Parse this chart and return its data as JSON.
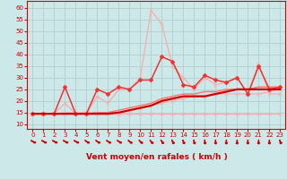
{
  "xlabel": "Vent moyen/en rafales ( km/h )",
  "background_color": "#cce8e8",
  "grid_color": "#aacccc",
  "x_ticks": [
    0,
    1,
    2,
    3,
    4,
    5,
    6,
    7,
    8,
    9,
    10,
    11,
    12,
    13,
    14,
    15,
    16,
    17,
    18,
    19,
    20,
    21,
    22,
    23
  ],
  "ylim": [
    8,
    63
  ],
  "yticks": [
    10,
    15,
    20,
    25,
    30,
    35,
    40,
    45,
    50,
    55,
    60
  ],
  "line_pink_flat": {
    "x": [
      0,
      1,
      2,
      3,
      4,
      5,
      6,
      7,
      8,
      9,
      10,
      11,
      12,
      13,
      14,
      15,
      16,
      17,
      18,
      19,
      20,
      21,
      22,
      23
    ],
    "y": [
      14.5,
      14.5,
      14.5,
      14.5,
      14.5,
      14.5,
      14.5,
      14.5,
      14.5,
      14.5,
      14.5,
      14.5,
      14.5,
      14.5,
      14.5,
      14.5,
      14.5,
      14.5,
      14.5,
      14.5,
      14.5,
      14.5,
      14.5,
      14.5
    ],
    "color": "#ffaaaa",
    "lw": 0.9,
    "marker": "x",
    "ms": 2.5,
    "zorder": 2
  },
  "line_pink_gust": {
    "x": [
      0,
      1,
      2,
      3,
      4,
      5,
      6,
      7,
      8,
      9,
      10,
      11,
      12,
      13,
      14,
      15,
      16,
      17,
      18,
      19,
      20,
      21,
      22,
      23
    ],
    "y": [
      14.5,
      14.5,
      14.5,
      19,
      14.5,
      14.5,
      22,
      19,
      25,
      25,
      30,
      59,
      53,
      35,
      30,
      25,
      30,
      27,
      28,
      30,
      23,
      36,
      23,
      23
    ],
    "color": "#ffaaaa",
    "lw": 0.9,
    "marker": "x",
    "ms": 2.5,
    "zorder": 2
  },
  "line_red_gust": {
    "x": [
      0,
      1,
      2,
      3,
      4,
      5,
      6,
      7,
      8,
      9,
      10,
      11,
      12,
      13,
      14,
      15,
      16,
      17,
      18,
      19,
      20,
      21,
      22,
      23
    ],
    "y": [
      14.5,
      14.5,
      14.5,
      26,
      14.5,
      14.5,
      25,
      23,
      26,
      25,
      29,
      29,
      39,
      37,
      27,
      26,
      31,
      29,
      28,
      30,
      23,
      35,
      25,
      26
    ],
    "color": "#ee3333",
    "lw": 1.1,
    "marker": "D",
    "ms": 2.5,
    "zorder": 4
  },
  "line_dark_trend1": {
    "x": [
      0,
      1,
      2,
      3,
      4,
      5,
      6,
      7,
      8,
      9,
      10,
      11,
      12,
      13,
      14,
      15,
      16,
      17,
      18,
      19,
      20,
      21,
      22,
      23
    ],
    "y": [
      14.5,
      14.5,
      14.5,
      14.5,
      14.5,
      14.5,
      14.5,
      14.5,
      15,
      16,
      17,
      18,
      20,
      21,
      22,
      22,
      22,
      23,
      24,
      25,
      25,
      25,
      25,
      25
    ],
    "color": "#cc0000",
    "lw": 1.6,
    "marker": null,
    "ms": 0,
    "zorder": 5
  },
  "line_med_trend": {
    "x": [
      0,
      1,
      2,
      3,
      4,
      5,
      6,
      7,
      8,
      9,
      10,
      11,
      12,
      13,
      14,
      15,
      16,
      17,
      18,
      19,
      20,
      21,
      22,
      23
    ],
    "y": [
      14.5,
      14.5,
      14.5,
      14.5,
      14.5,
      14.5,
      15,
      15,
      16,
      17,
      18,
      19,
      21,
      22,
      23,
      23,
      24,
      24,
      25,
      25,
      25,
      26,
      26,
      26
    ],
    "color": "#ff7777",
    "lw": 1.1,
    "marker": null,
    "ms": 0,
    "zorder": 3
  },
  "line_pink_mean": {
    "x": [
      0,
      1,
      2,
      3,
      4,
      5,
      6,
      7,
      8,
      9,
      10,
      11,
      12,
      13,
      14,
      15,
      16,
      17,
      18,
      19,
      20,
      21,
      22,
      23
    ],
    "y": [
      14.5,
      14.5,
      14.5,
      15,
      15,
      15,
      15,
      15,
      15,
      16,
      17,
      18,
      19,
      20,
      21,
      22,
      22,
      23,
      23,
      23,
      23,
      23,
      24,
      25
    ],
    "color": "#ffaaaa",
    "lw": 0.9,
    "marker": "x",
    "ms": 2.5,
    "zorder": 2
  },
  "arrows": {
    "angles_deg": [
      50,
      50,
      50,
      50,
      50,
      45,
      45,
      45,
      45,
      40,
      35,
      30,
      25,
      20,
      15,
      10,
      5,
      2,
      0,
      0,
      0,
      0,
      0,
      15
    ],
    "color": "#cc0000"
  }
}
